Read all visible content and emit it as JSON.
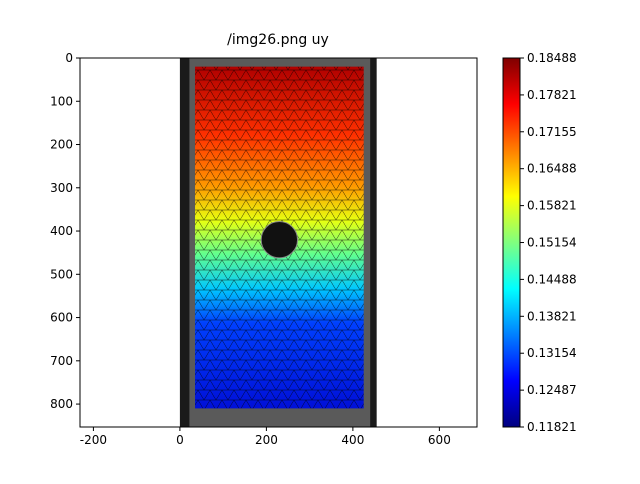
{
  "chart_data": {
    "type": "image",
    "title": "/img26.png uy",
    "xlim": [
      -231,
      687
    ],
    "ylim": [
      853,
      0
    ],
    "xticks": [
      -200,
      0,
      200,
      400,
      600
    ],
    "yticks": [
      0,
      100,
      200,
      300,
      400,
      500,
      600,
      700,
      800
    ],
    "colormap": "jet",
    "clim": [
      0.11821,
      0.18488
    ],
    "cticks": [
      0.11821,
      0.12487,
      0.13154,
      0.13821,
      0.14488,
      0.15154,
      0.15821,
      0.16488,
      0.17155,
      0.17821,
      0.18488
    ]
  }
}
